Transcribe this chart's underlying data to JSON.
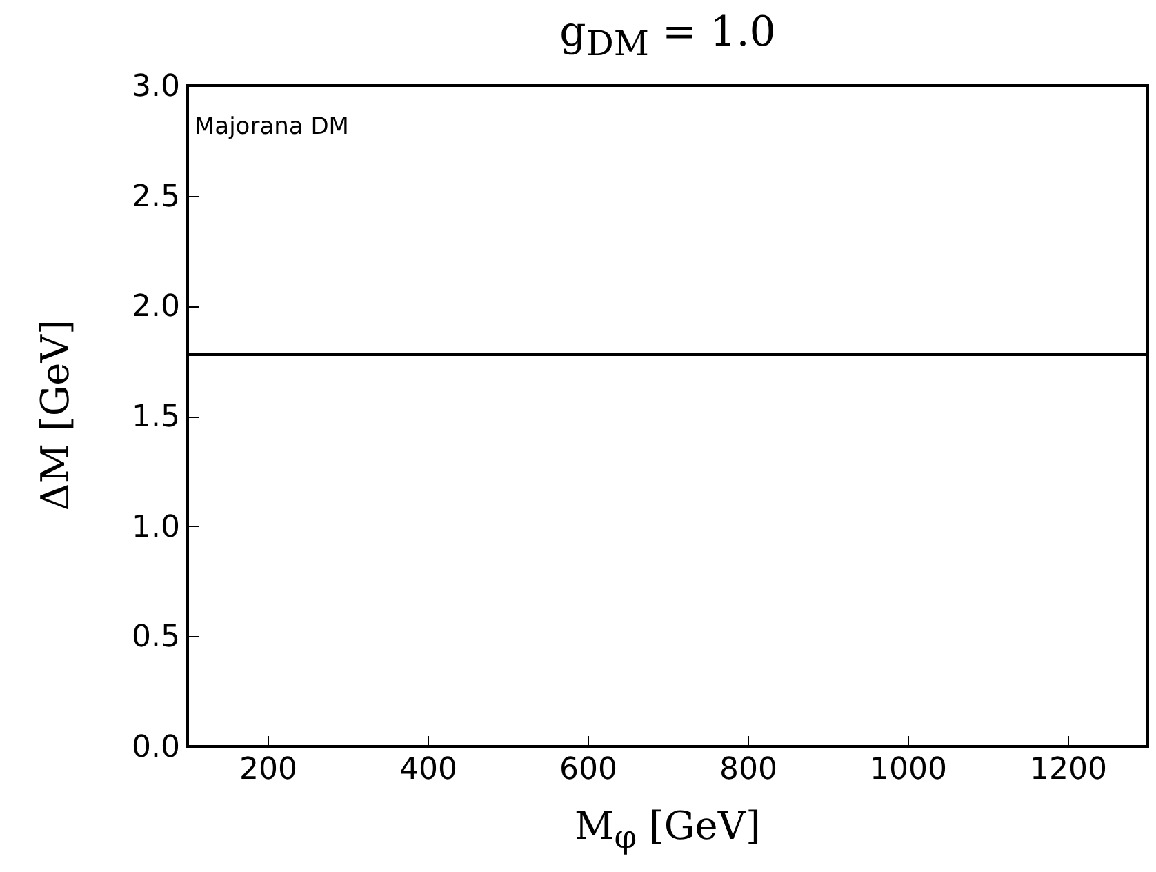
{
  "chart_data": {
    "type": "line",
    "title": "g$_{DM}$ = 1.0",
    "xlabel": "M$_{φ}$ [GeV]",
    "ylabel": "ΔM [GeV]",
    "annotations": [
      "Majorana DM"
    ],
    "xlim": [
      100,
      1300
    ],
    "xticks": [
      200,
      400,
      600,
      800,
      1000,
      1200
    ],
    "ylim": [
      0,
      3
    ],
    "yticks": [
      {
        "value": 0,
        "label": "0.0"
      },
      0.5,
      {
        "value": 1,
        "label": "1.0"
      },
      1.5,
      {
        "value": 2,
        "label": "2.0"
      },
      2.5,
      {
        "value": 3,
        "label": "3.0"
      }
    ],
    "grid": false,
    "series": [
      {
        "x": [
          100,
          1300
        ],
        "values": [
          1.78,
          1.78
        ],
        "color": "#000000"
      }
    ]
  }
}
